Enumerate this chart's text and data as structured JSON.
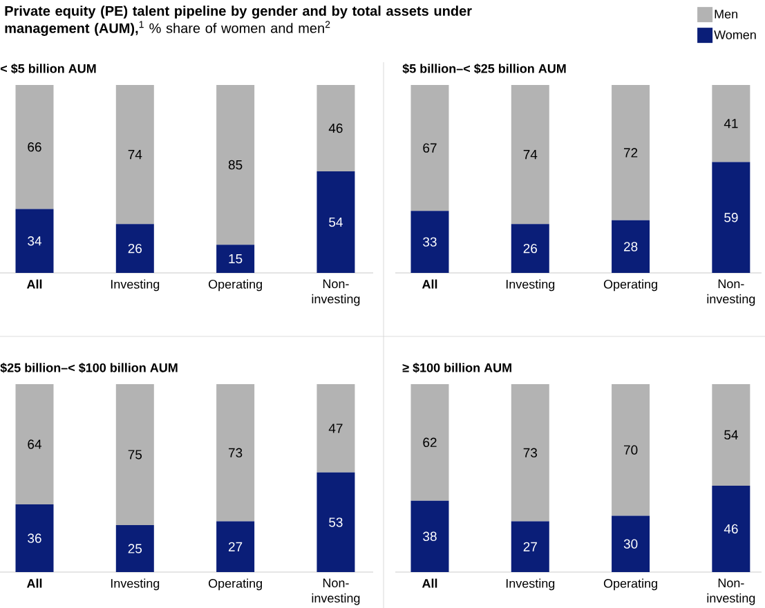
{
  "chart_data": [
    {
      "type": "bar",
      "stacked": true,
      "title": "**Private equity (PE) talent pipeline by gender and by total assets under management (AUM),**$^{1}$ % share of women and men$^{2}$",
      "subtitle": "< $5 billion AUM",
      "categories": [
        "All",
        "Investing",
        "Operating",
        "Non-investing"
      ],
      "series": [
        {
          "name": "Women",
          "color": "#0a1e78",
          "values": [
            34,
            26,
            15,
            54
          ]
        },
        {
          "name": "Men",
          "color": "#b3b3b3",
          "values": [
            66,
            74,
            85,
            46
          ]
        }
      ],
      "data_labels": true,
      "legend": "top right",
      "tick_labels": "x"
    },
    {
      "type": "bar",
      "stacked": true,
      "title": "$5 billion–< $25 billion AUM",
      "categories": [
        "All",
        "Investing",
        "Operating",
        "Non-investing"
      ],
      "series": [
        {
          "color": "#0a1e78",
          "values": [
            33,
            26,
            28,
            59
          ]
        },
        {
          "color": "#b3b3b3",
          "values": [
            67,
            74,
            72,
            41
          ]
        }
      ],
      "data_labels": true,
      "tick_labels": "x"
    },
    {
      "type": "bar",
      "stacked": true,
      "title": "$25 billion–< $100 billion AUM",
      "categories": [
        "All",
        "Investing",
        "Operating",
        "Non-investing"
      ],
      "series": [
        {
          "color": "#0a1e78",
          "values": [
            36,
            25,
            27,
            53
          ]
        },
        {
          "color": "#b3b3b3",
          "values": [
            64,
            75,
            73,
            47
          ]
        }
      ],
      "data_labels": true,
      "tick_labels": "x"
    },
    {
      "type": "bar",
      "stacked": true,
      "title": "≥ $100 billion AUM",
      "categories": [
        "All",
        "Investing",
        "Operating",
        "Non-investing"
      ],
      "series": [
        {
          "color": "#0a1e78",
          "values": [
            38,
            27,
            30,
            46
          ]
        },
        {
          "color": "#b3b3b3",
          "values": [
            62,
            73,
            70,
            54
          ]
        }
      ],
      "data_labels": true,
      "tick_labels": "x"
    }
  ]
}
